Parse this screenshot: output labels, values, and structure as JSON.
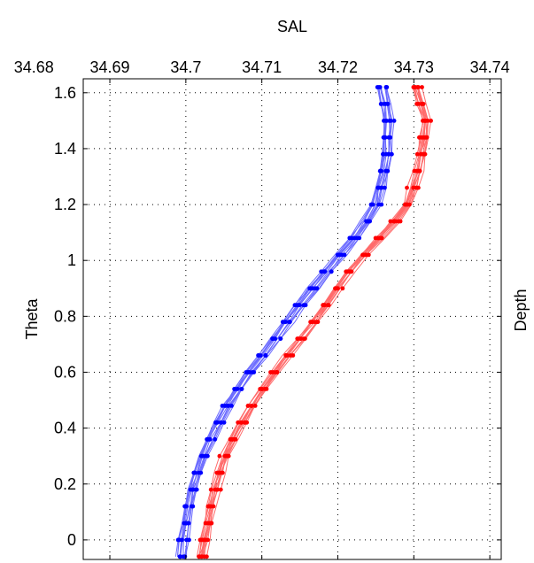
{
  "chart_data": {
    "type": "line",
    "title": "SAL",
    "xlabel": "",
    "ylabel": "Theta",
    "right_label": "Depth",
    "x_ticks": [
      "34.68",
      "34.69",
      "34.7",
      "34.71",
      "34.72",
      "34.73",
      "34.74"
    ],
    "x_tick_values": [
      34.68,
      34.69,
      34.7,
      34.71,
      34.72,
      34.73,
      34.74
    ],
    "y_ticks": [
      "0",
      "0.2",
      "0.4",
      "0.6",
      "0.8",
      "1",
      "1.2",
      "1.4",
      "1.6"
    ],
    "y_tick_values": [
      0,
      0.2,
      0.4,
      0.6,
      0.8,
      1.0,
      1.2,
      1.4,
      1.6
    ],
    "xlim": [
      34.6865,
      34.7415
    ],
    "ylim": [
      -0.07,
      1.65
    ],
    "grid": true,
    "x_axis_position": "top",
    "colors": {
      "blue": "#0000ff",
      "red": "#ff0000",
      "blue_line": "#6b6bff",
      "red_line": "#ff6b6b"
    },
    "series": [
      {
        "color": "blue",
        "mean_profile": {
          "sal": [
            34.6995,
            34.6998,
            34.7004,
            34.7012,
            34.7024,
            34.704,
            34.706,
            34.7085,
            34.7113,
            34.714,
            34.7168,
            34.7198,
            34.723,
            34.7252,
            34.7265,
            34.7267,
            34.7258
          ],
          "theta": [
            -0.07,
            0.0,
            0.1,
            0.2,
            0.3,
            0.4,
            0.5,
            0.6,
            0.7,
            0.8,
            0.9,
            1.0,
            1.1,
            1.2,
            1.35,
            1.5,
            1.65
          ]
        },
        "profiles": 12
      },
      {
        "color": "red",
        "mean_profile": {
          "sal": [
            34.702,
            34.7025,
            34.7031,
            34.704,
            34.7052,
            34.707,
            34.7092,
            34.7118,
            34.7147,
            34.7175,
            34.72,
            34.7228,
            34.7262,
            34.7292,
            34.731,
            34.7316,
            34.7302
          ],
          "theta": [
            -0.07,
            0.0,
            0.1,
            0.2,
            0.3,
            0.4,
            0.5,
            0.6,
            0.7,
            0.8,
            0.9,
            1.0,
            1.1,
            1.2,
            1.35,
            1.5,
            1.65
          ]
        },
        "profiles": 12
      }
    ]
  }
}
